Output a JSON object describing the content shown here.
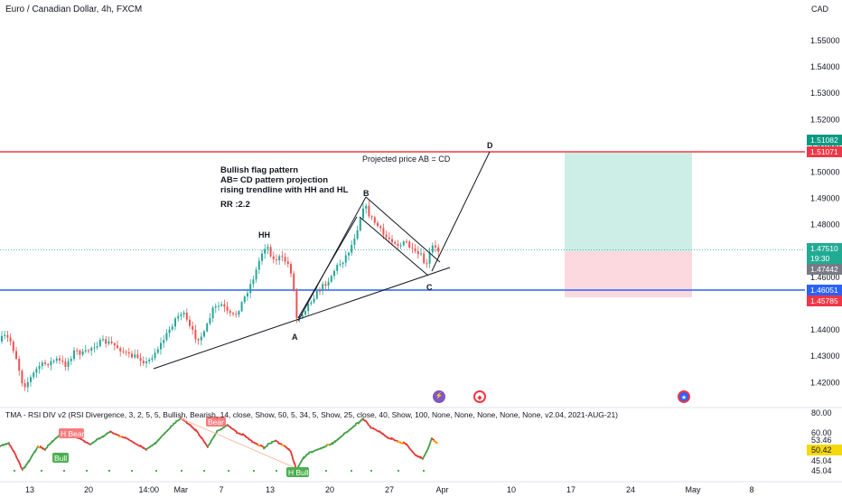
{
  "header": {
    "title": "Euro / Canadian Dollar, 4h, FXCM",
    "currency": "CAD"
  },
  "annotations": {
    "text_block": [
      "Bullish flag pattern",
      "AB= CD pattern projection",
      "rising trendline with HH and HL",
      "",
      "RR :2.2"
    ],
    "projected": "Projected price AB = CD",
    "labels": {
      "hh": "HH",
      "a": "A",
      "b": "B",
      "c": "C",
      "d": "D"
    }
  },
  "indicator": {
    "title": "TMA - RSI DIV v2 (RSI Divergence, 3, 2, 5, 5, Bullish, Bearish, 14, close, Show, 50, 5, 34, 5, Show, 25, close, 40, Show, 100, None, None, None, None, None, v2.04, 2021-AUG-21)",
    "labels": {
      "h_bear_1": "H Bear",
      "bear_2": "Bear",
      "bull_1": "Bull",
      "h_bull": "H Bull"
    },
    "scale": [
      "80.00",
      "60.00",
      "53.46",
      "50.42",
      "45.04",
      "45.04"
    ]
  },
  "colors": {
    "up": "#26a69a",
    "down": "#ef5350",
    "resistance": "#f23645",
    "support": "#2962ff",
    "tp_zone": "#cdeee7",
    "sl_zone": "#fbd9de",
    "rsi_bull": "#4caf50",
    "rsi_bear": "#f23645"
  },
  "price_badges": [
    {
      "text": "1.51082",
      "bg": "#089981"
    },
    {
      "text": "1.51071",
      "bg": "#f23645"
    },
    {
      "text": "1.47510",
      "bg": "#22ab94"
    },
    {
      "text": "19:30",
      "bg": "#22ab94"
    },
    {
      "text": "1.47442",
      "bg": "#787b86"
    },
    {
      "text": "1.46051",
      "bg": "#2962ff"
    },
    {
      "text": "1.45785",
      "bg": "#f23645"
    }
  ],
  "chart_data": {
    "type": "candlestick",
    "symbol": "EURCAD",
    "timeframe": "4h",
    "y_axis": {
      "ticks": [
        "1.55000",
        "1.54000",
        "1.53000",
        "1.52000",
        "1.51000",
        "1.50000",
        "1.49000",
        "1.48000",
        "1.47000",
        "1.46000",
        "1.45000",
        "1.44000",
        "1.43000",
        "1.42000"
      ],
      "range": [
        1.418,
        1.5585
      ]
    },
    "x_axis": {
      "ticks": [
        "13",
        "20",
        "14:00",
        "Mar",
        "7",
        "13",
        "20",
        "27",
        "Apr",
        "10",
        "17",
        "24",
        "May",
        "8"
      ]
    },
    "levels": {
      "resistance": 1.51071,
      "support": 1.46051,
      "target": 1.51082,
      "entry": 1.4751,
      "stop": 1.45785,
      "current": 1.4751
    },
    "pattern_points": {
      "A": 1.45,
      "B": 1.493,
      "C": 1.47,
      "D": 1.511,
      "HH": 1.479
    },
    "rsi": {
      "range": [
        45.04,
        80.0
      ],
      "last": 50.42
    }
  }
}
